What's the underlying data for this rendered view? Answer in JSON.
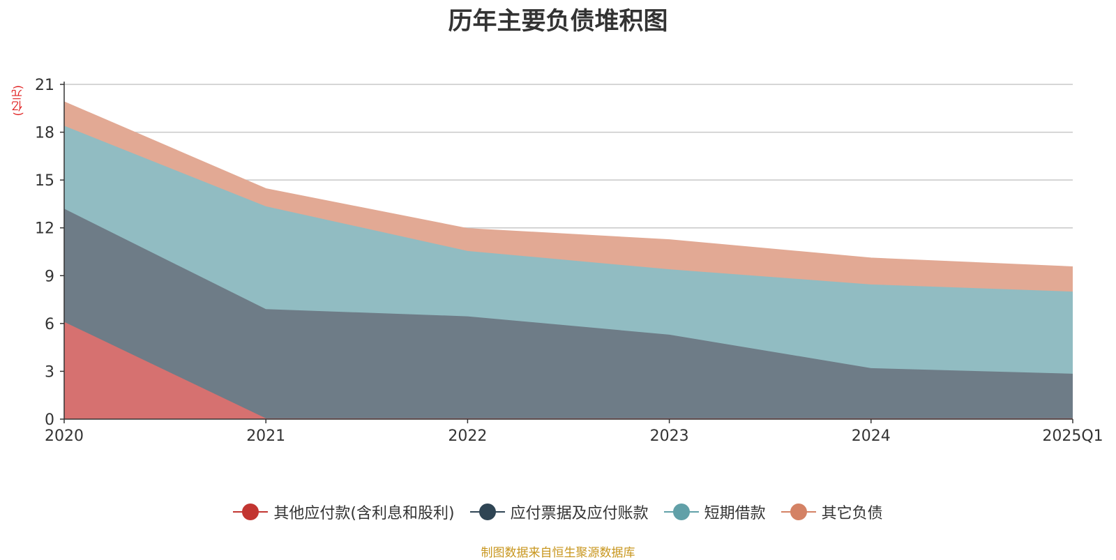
{
  "title": "历年主要负债堆积图",
  "unit_label": "(亿元)",
  "source": "制图数据来自恒生聚源数据库",
  "chart_data": {
    "type": "area",
    "stacked": true,
    "title": "历年主要负债堆积图",
    "ylabel": "(亿元)",
    "categories": [
      "2020",
      "2021",
      "2022",
      "2023",
      "2024",
      "2025Q1"
    ],
    "ylim": [
      0,
      21
    ],
    "yticks": [
      0,
      3,
      6,
      9,
      12,
      15,
      18,
      21
    ],
    "grid": true,
    "legend_position": "bottom",
    "series": [
      {
        "name": "其他应付款(含利息和股利)",
        "color": "#c23531",
        "fill": "#d67170",
        "values": [
          6.1,
          0.05,
          0.05,
          0.05,
          0.05,
          0.05
        ]
      },
      {
        "name": "应付票据及应付账款",
        "color": "#2f4554",
        "fill": "#6e7c87",
        "values": [
          7.1,
          6.85,
          6.4,
          5.25,
          3.15,
          2.8
        ]
      },
      {
        "name": "短期借款",
        "color": "#61a0a8",
        "fill": "#91bcc2",
        "values": [
          5.2,
          6.45,
          4.1,
          4.1,
          5.25,
          5.15
        ]
      },
      {
        "name": "其它负债",
        "color": "#d48265",
        "fill": "#e2a994",
        "values": [
          1.5,
          1.1,
          1.4,
          1.85,
          1.65,
          1.55
        ]
      }
    ]
  }
}
